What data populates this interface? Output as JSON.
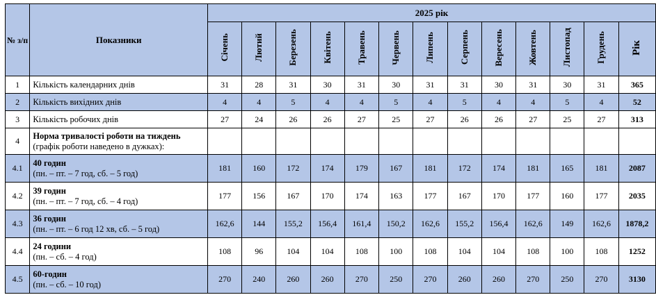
{
  "header": {
    "num_col": "№ з/п",
    "indicators_col": "Показники",
    "year_title": "2025 рік",
    "months": [
      "Січень",
      "Лютий",
      "Березень",
      "Квітень",
      "Травень",
      "Червень",
      "Липень",
      "Серпень",
      "Вересень",
      "Жовтень",
      "Листопад",
      "Грудень"
    ],
    "year_col": "Рік"
  },
  "rows": [
    {
      "idx": "1",
      "title": "Кількість календарних днів",
      "subtitle": "",
      "values": [
        "31",
        "28",
        "31",
        "30",
        "31",
        "30",
        "31",
        "31",
        "30",
        "31",
        "30",
        "31"
      ],
      "total": "365"
    },
    {
      "idx": "2",
      "title": "Кількість вихідних днів",
      "subtitle": "",
      "values": [
        "4",
        "4",
        "5",
        "4",
        "4",
        "5",
        "4",
        "5",
        "4",
        "4",
        "5",
        "4"
      ],
      "total": "52"
    },
    {
      "idx": "3",
      "title": "Кількість робочих днів",
      "subtitle": "",
      "values": [
        "27",
        "24",
        "26",
        "26",
        "27",
        "25",
        "27",
        "26",
        "26",
        "27",
        "25",
        "27"
      ],
      "total": "313"
    },
    {
      "idx": "4",
      "title": "Норма тривалості роботи на тиждень",
      "subtitle": "(графік роботи наведено в дужках):",
      "values": [
        "",
        "",
        "",
        "",
        "",
        "",
        "",
        "",
        "",
        "",
        "",
        ""
      ],
      "total": ""
    },
    {
      "idx": "4.1",
      "title": "40 годин",
      "subtitle": "(пн. – пт. – 7 год, сб. – 5 год)",
      "values": [
        "181",
        "160",
        "172",
        "174",
        "179",
        "167",
        "181",
        "172",
        "174",
        "181",
        "165",
        "181"
      ],
      "total": "2087"
    },
    {
      "idx": "4.2",
      "title": "39 годин",
      "subtitle": "(пн. – пт. – 7 год, сб. – 4 год)",
      "values": [
        "177",
        "156",
        "167",
        "170",
        "174",
        "163",
        "177",
        "167",
        "170",
        "177",
        "160",
        "177"
      ],
      "total": "2035"
    },
    {
      "idx": "4.3",
      "title": "36 годин",
      "subtitle": "(пн. – пт. – 6 год 12 хв, сб. – 5 год)",
      "values": [
        "162,6",
        "144",
        "155,2",
        "156,4",
        "161,4",
        "150,2",
        "162,6",
        "155,2",
        "156,4",
        "162,6",
        "149",
        "162,6"
      ],
      "total": "1878,2"
    },
    {
      "idx": "4.4",
      "title": "24 години",
      "subtitle": "(пн. – сб. – 4 год)",
      "values": [
        "108",
        "96",
        "104",
        "104",
        "108",
        "100",
        "108",
        "104",
        "104",
        "108",
        "100",
        "108"
      ],
      "total": "1252"
    },
    {
      "idx": "4.5",
      "title": "60-годин",
      "subtitle": "(пн. – сб. – 10 год)",
      "values": [
        "270",
        "240",
        "260",
        "260",
        "270",
        "250",
        "270",
        "260",
        "260",
        "270",
        "250",
        "270"
      ],
      "total": "3130"
    }
  ],
  "colors": {
    "header_fill": "#b4c6e7",
    "border": "#000000"
  }
}
